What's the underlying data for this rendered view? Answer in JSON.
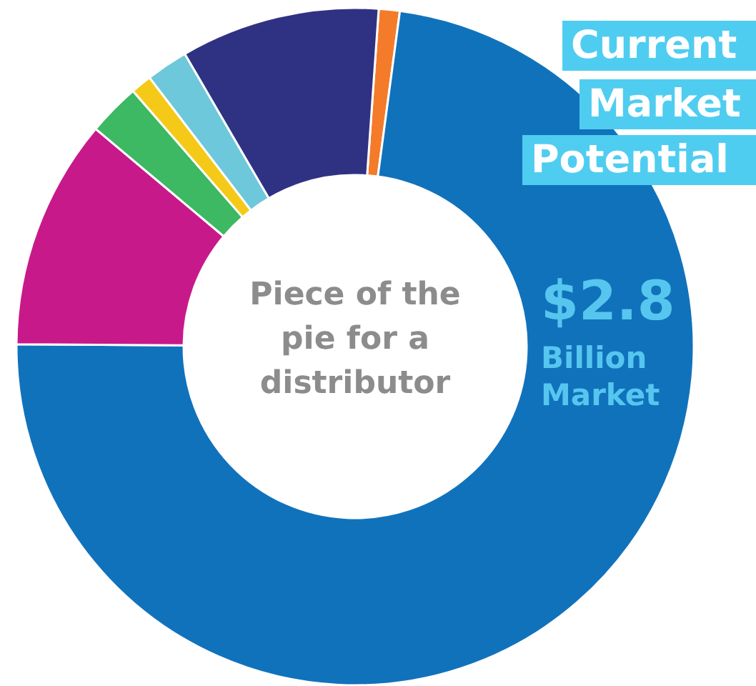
{
  "chart_data": {
    "type": "donut",
    "title": "Current Market Potential",
    "categories": [
      null,
      null,
      null,
      null,
      null,
      null,
      null
    ],
    "values": [
      1,
      73,
      11,
      2.5,
      1,
      2,
      9.5
    ],
    "colors": [
      "#f47b29",
      "#1172bc",
      "#c8198a",
      "#3db863",
      "#f5c917",
      "#6ec8db",
      "#2f3283"
    ],
    "annotations": [
      "Piece of the\npie for a\ndistributor",
      "$2.8\nBillion\nMarket"
    ]
  }
}
